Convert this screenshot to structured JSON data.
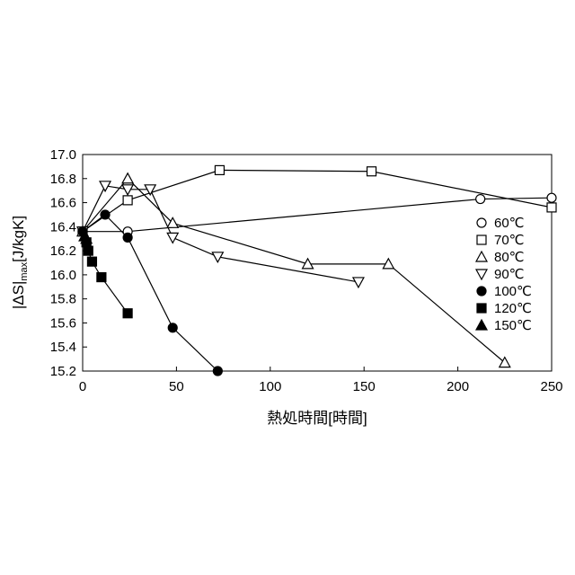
{
  "chart_data": {
    "type": "line",
    "title": "",
    "xlabel": "熱処時間[時間]",
    "ylabel_main": "|ΔS|",
    "ylabel_sub": "max",
    "ylabel_unit": "[J/kgK]",
    "xlim": [
      0,
      250
    ],
    "ylim": [
      15.2,
      17.0
    ],
    "xticks": [
      0,
      50,
      100,
      150,
      200,
      250
    ],
    "yticks": [
      15.2,
      15.4,
      15.6,
      15.8,
      16.0,
      16.2,
      16.4,
      16.6,
      16.8,
      17.0
    ],
    "xtick_labels": [
      "0",
      "50",
      "100",
      "150",
      "200",
      "250"
    ],
    "ytick_labels": [
      "15.2",
      "15.4",
      "15.6",
      "15.8",
      "16.0",
      "16.2",
      "16.4",
      "16.6",
      "16.8",
      "17.0"
    ],
    "grid": false,
    "legend_position": "right",
    "series": [
      {
        "name": "60℃",
        "marker": "circle-open",
        "x": [
          0,
          24,
          212,
          250
        ],
        "y": [
          16.36,
          16.36,
          16.63,
          16.64
        ]
      },
      {
        "name": "70℃",
        "marker": "square-open",
        "x": [
          0,
          24,
          73,
          154,
          250
        ],
        "y": [
          16.36,
          16.62,
          16.87,
          16.86,
          16.56
        ]
      },
      {
        "name": "80℃",
        "marker": "triangle-up-open",
        "x": [
          0,
          24,
          48,
          120,
          163,
          225
        ],
        "y": [
          16.36,
          16.8,
          16.43,
          16.09,
          16.09,
          15.27
        ]
      },
      {
        "name": "90℃",
        "marker": "triangle-down-open",
        "x": [
          0,
          12,
          24,
          36,
          48,
          72,
          147
        ],
        "y": [
          16.36,
          16.74,
          16.71,
          16.71,
          16.31,
          16.15,
          15.94
        ]
      },
      {
        "name": "100℃",
        "marker": "circle-filled",
        "x": [
          0,
          12,
          24,
          48,
          72
        ],
        "y": [
          16.36,
          16.5,
          16.31,
          15.56,
          15.2
        ]
      },
      {
        "name": "120℃",
        "marker": "square-filled",
        "x": [
          2,
          3,
          5,
          10,
          24
        ],
        "y": [
          16.27,
          16.2,
          16.11,
          15.98,
          15.68
        ]
      },
      {
        "name": "150℃",
        "marker": "triangle-up-filled",
        "x": [
          1,
          2
        ],
        "y": [
          16.32,
          16.3
        ]
      }
    ]
  }
}
